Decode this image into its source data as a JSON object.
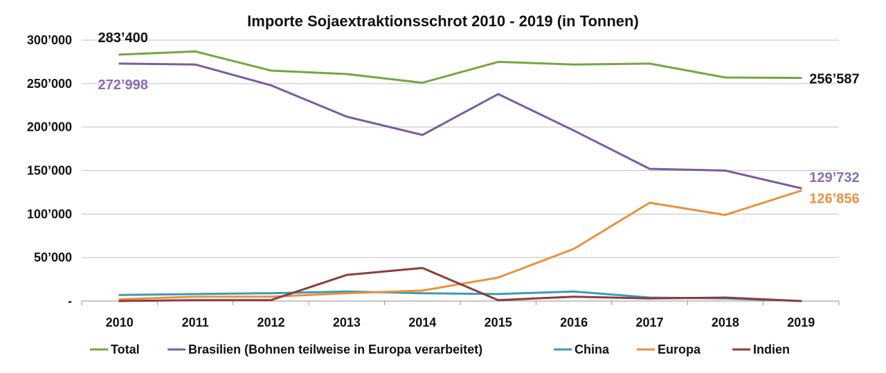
{
  "chart_data": {
    "type": "line",
    "title": "Importe Sojaextraktionsschrot 2010 - 2019 (in Tonnen)",
    "xlabel": "",
    "ylabel": "",
    "categories": [
      "2010",
      "2011",
      "2012",
      "2013",
      "2014",
      "2015",
      "2016",
      "2017",
      "2018",
      "2019"
    ],
    "ylim": [
      0,
      300000
    ],
    "y_ticks": [
      {
        "value": 0,
        "label": "-"
      },
      {
        "value": 50000,
        "label": "50’000"
      },
      {
        "value": 100000,
        "label": "100’000"
      },
      {
        "value": 150000,
        "label": "150’000"
      },
      {
        "value": 200000,
        "label": "200’000"
      },
      {
        "value": 250000,
        "label": "250’000"
      },
      {
        "value": 300000,
        "label": "300’000"
      }
    ],
    "grid": true,
    "legend_position": "bottom",
    "series": [
      {
        "name": "Total",
        "color": "#77a442",
        "values": [
          283400,
          287000,
          265000,
          261000,
          251000,
          275000,
          272000,
          273000,
          257000,
          256587
        ]
      },
      {
        "name": "Brasilien (Bohnen teilweise in Europa verarbeitet)",
        "color": "#7b5b9e",
        "values": [
          272998,
          272000,
          248000,
          212000,
          191000,
          238000,
          196000,
          152000,
          150000,
          129732
        ]
      },
      {
        "name": "China",
        "color": "#3a9bb5",
        "values": [
          7000,
          8000,
          9000,
          11000,
          9000,
          8000,
          11000,
          4000,
          3000,
          0
        ]
      },
      {
        "name": "Europa",
        "color": "#e8913e",
        "values": [
          2000,
          5000,
          5000,
          9000,
          12000,
          27000,
          60000,
          113000,
          99000,
          126856
        ]
      },
      {
        "name": "Indien",
        "color": "#8e3b3b",
        "values": [
          0,
          1000,
          1000,
          30000,
          38000,
          1000,
          5000,
          3000,
          4000,
          0
        ]
      }
    ],
    "annotations": [
      {
        "series": 0,
        "index": 0,
        "text": "283’400",
        "color": "#111111"
      },
      {
        "series": 1,
        "index": 0,
        "text": "272’998",
        "color": "#8a6bb0"
      },
      {
        "series": 0,
        "index": 9,
        "text": "256’587",
        "color": "#111111"
      },
      {
        "series": 1,
        "index": 9,
        "text": "129’732",
        "color": "#8a6bb0"
      },
      {
        "series": 3,
        "index": 9,
        "text": "126’856",
        "color": "#e8913e"
      }
    ]
  }
}
